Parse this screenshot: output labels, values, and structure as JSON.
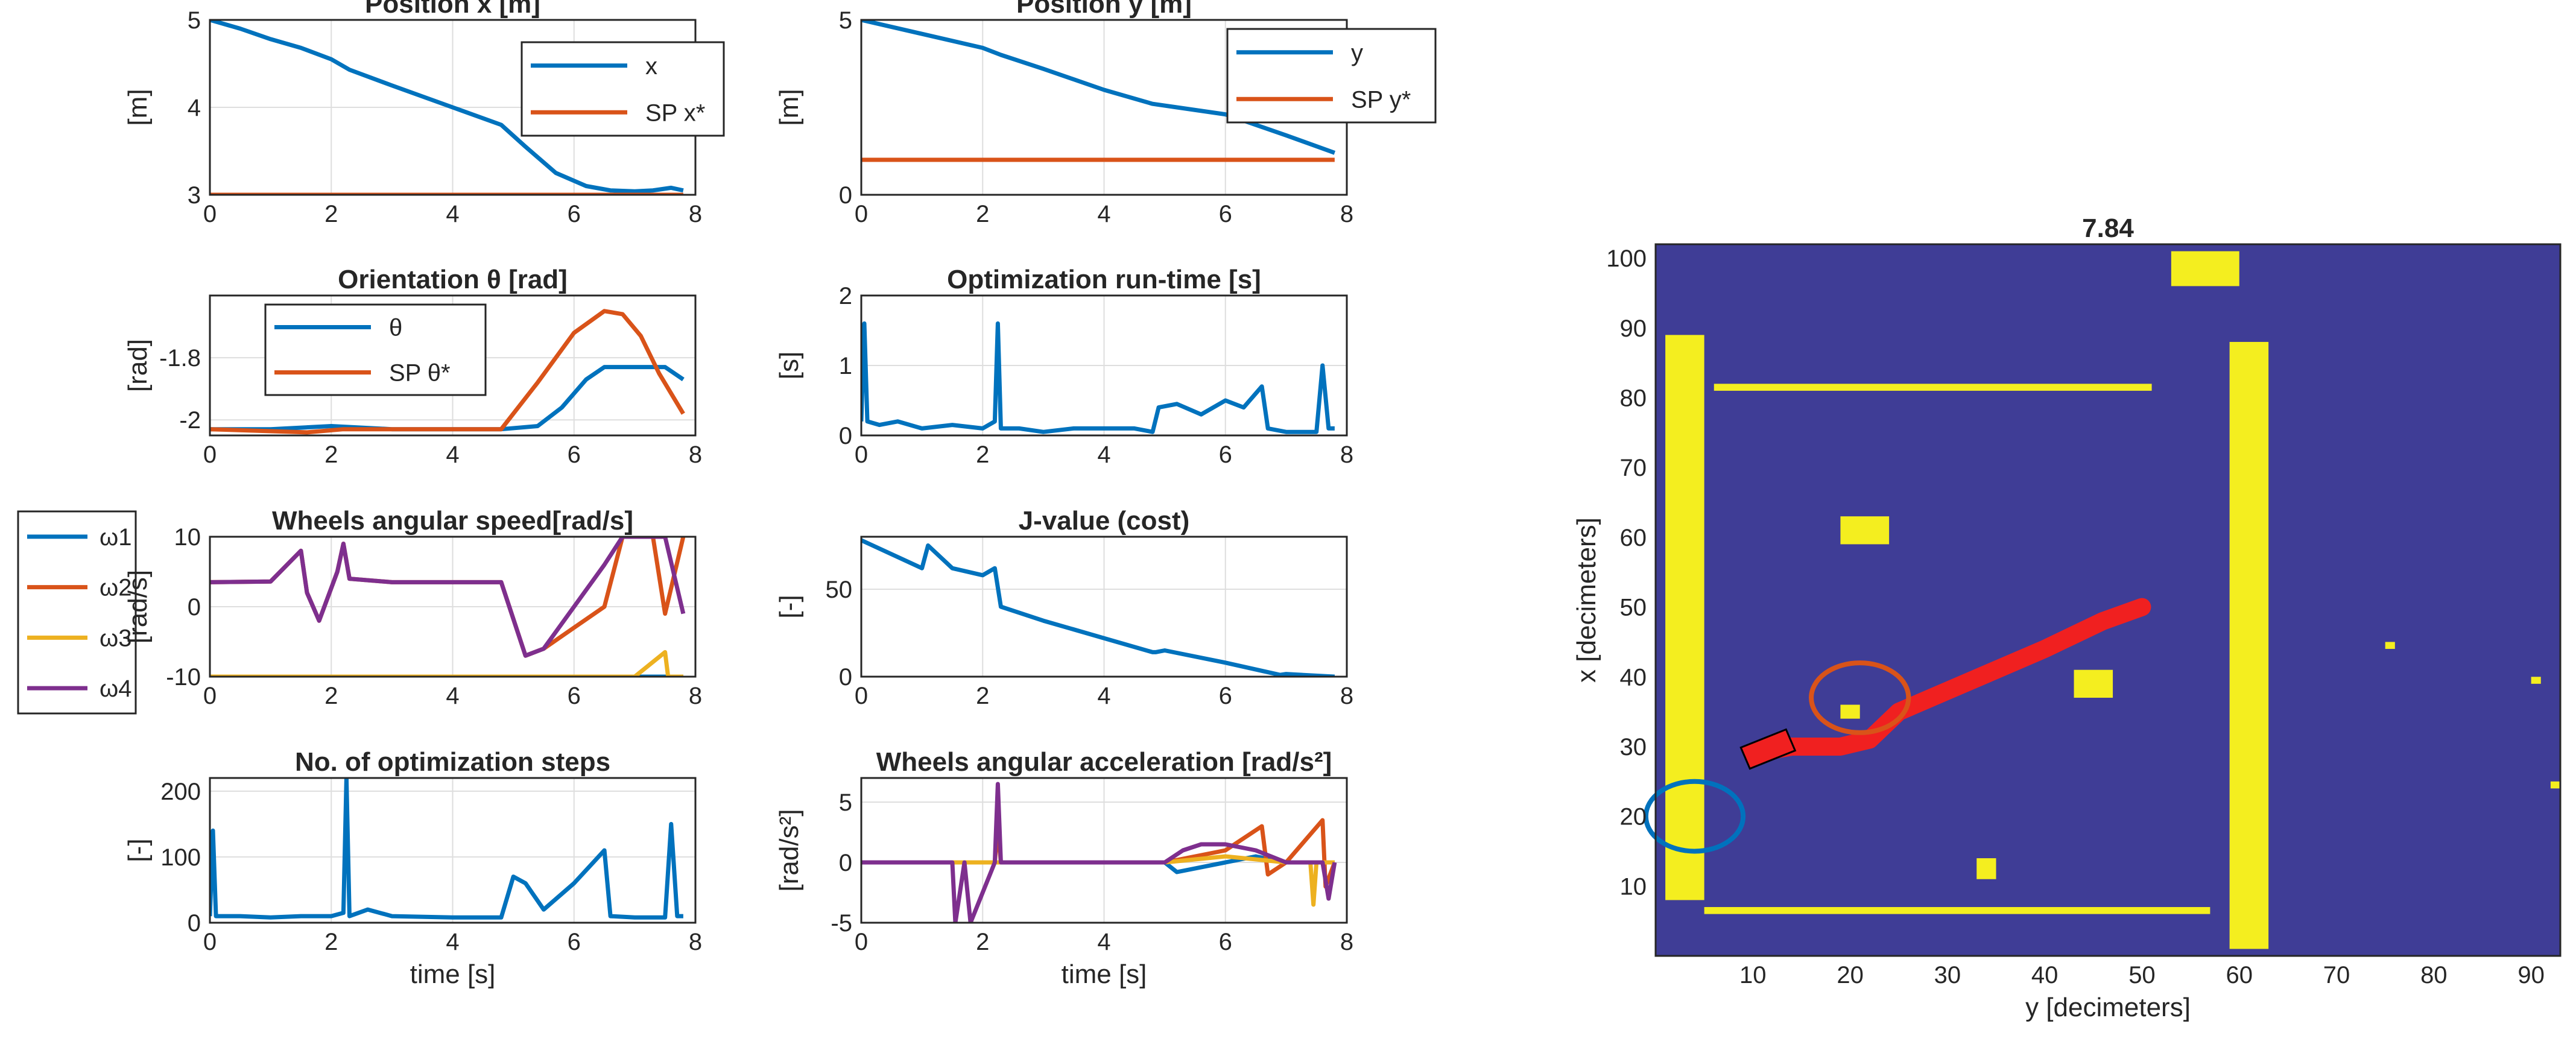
{
  "figure": {
    "type": "matlab-figure",
    "background": "#ffffff"
  },
  "colors": {
    "blue": "#0072BD",
    "orange": "#D95319",
    "yellow_line": "#EDB120",
    "purple": "#7E2F8E",
    "map_bg": "#3F3D96",
    "map_obstacle": "#F4EE1F",
    "path_red": "#F02020",
    "circle_orange": "#D95319",
    "circle_blue": "#0072BD"
  },
  "chart_data": [
    {
      "id": "pos-x",
      "type": "line",
      "title": "Position x [m]",
      "ylabel": "[m]",
      "xlabel": "",
      "xlim": [
        0,
        8
      ],
      "ylim": [
        3,
        5
      ],
      "xticks": [
        0,
        2,
        4,
        6,
        8
      ],
      "yticks": [
        3,
        4,
        5
      ],
      "grid": true,
      "legend": {
        "placement": "top-right",
        "entries": [
          "x",
          "SP x*"
        ]
      },
      "series": [
        {
          "name": "x",
          "color": "blue",
          "x": [
            0,
            0.5,
            1,
            1.5,
            2,
            2.3,
            3,
            4,
            4.8,
            5.2,
            5.7,
            6.2,
            6.6,
            7,
            7.3,
            7.6,
            7.8
          ],
          "y": [
            5,
            4.9,
            4.78,
            4.68,
            4.55,
            4.43,
            4.25,
            4.0,
            3.8,
            3.55,
            3.25,
            3.1,
            3.05,
            3.04,
            3.05,
            3.08,
            3.05
          ]
        },
        {
          "name": "SP x*",
          "color": "orange",
          "x": [
            0,
            7.8
          ],
          "y": [
            3,
            3
          ]
        }
      ]
    },
    {
      "id": "pos-y",
      "type": "line",
      "title": "Position y [m]",
      "ylabel": "[m]",
      "xlabel": "",
      "xlim": [
        0,
        8
      ],
      "ylim": [
        0,
        5
      ],
      "xticks": [
        0,
        2,
        4,
        6,
        8
      ],
      "yticks": [
        0,
        5
      ],
      "grid": true,
      "legend": {
        "placement": "top-right",
        "entries": [
          "y",
          "SP y*"
        ]
      },
      "series": [
        {
          "name": "y",
          "color": "blue",
          "x": [
            0,
            1,
            2,
            2.3,
            3,
            4,
            4.8,
            5.2,
            6,
            7,
            7.8
          ],
          "y": [
            5,
            4.6,
            4.2,
            4.0,
            3.6,
            3.0,
            2.6,
            2.5,
            2.3,
            1.7,
            1.2
          ]
        },
        {
          "name": "SP y*",
          "color": "orange",
          "x": [
            0,
            7.8
          ],
          "y": [
            1,
            1
          ]
        }
      ]
    },
    {
      "id": "orient",
      "type": "line",
      "title": "Orientation θ [rad]",
      "ylabel": "[rad]",
      "xlabel": "",
      "xlim": [
        0,
        8
      ],
      "ylim": [
        -2.05,
        -1.6
      ],
      "xticks": [
        0,
        2,
        4,
        6,
        8
      ],
      "yticks": [
        -2,
        -1.8
      ],
      "grid": true,
      "legend": {
        "placement": "top-left",
        "entries": [
          "θ",
          "SP θ*"
        ]
      },
      "series": [
        {
          "name": "θ",
          "color": "blue",
          "x": [
            0,
            1,
            2,
            3,
            4,
            4.8,
            5.4,
            5.8,
            6.2,
            6.5,
            7,
            7.5,
            7.8
          ],
          "y": [
            -2.03,
            -2.03,
            -2.02,
            -2.03,
            -2.03,
            -2.03,
            -2.02,
            -1.96,
            -1.87,
            -1.83,
            -1.83,
            -1.83,
            -1.87
          ]
        },
        {
          "name": "SP θ*",
          "color": "orange",
          "x": [
            0,
            1.6,
            2.2,
            3,
            4.8,
            5.4,
            6,
            6.5,
            6.8,
            7.1,
            7.4,
            7.8
          ],
          "y": [
            -2.03,
            -2.04,
            -2.03,
            -2.03,
            -2.03,
            -1.88,
            -1.72,
            -1.65,
            -1.66,
            -1.73,
            -1.85,
            -1.98
          ]
        }
      ]
    },
    {
      "id": "opt-runtime",
      "type": "line",
      "title": "Optimization run-time [s]",
      "ylabel": "[s]",
      "xlabel": "",
      "xlim": [
        0,
        8
      ],
      "ylim": [
        0,
        2
      ],
      "xticks": [
        0,
        2,
        4,
        6,
        8
      ],
      "yticks": [
        0,
        1,
        2
      ],
      "grid": true,
      "series": [
        {
          "name": "run-time",
          "color": "blue",
          "x": [
            0,
            0.05,
            0.1,
            0.3,
            0.6,
            1,
            1.5,
            2,
            2.2,
            2.25,
            2.3,
            2.6,
            3,
            3.5,
            4,
            4.5,
            4.8,
            4.9,
            5.2,
            5.6,
            6,
            6.3,
            6.6,
            6.7,
            7,
            7.5,
            7.6,
            7.7,
            7.8
          ],
          "y": [
            0.2,
            1.6,
            0.2,
            0.15,
            0.2,
            0.1,
            0.15,
            0.1,
            0.2,
            1.6,
            0.1,
            0.1,
            0.05,
            0.1,
            0.1,
            0.1,
            0.05,
            0.4,
            0.45,
            0.3,
            0.5,
            0.4,
            0.7,
            0.1,
            0.05,
            0.05,
            1.0,
            0.1,
            0.1
          ]
        }
      ]
    },
    {
      "id": "wheel-speed",
      "type": "line",
      "title": "Wheels angular speed[rad/s]",
      "ylabel": "[rad/s]",
      "xlabel": "",
      "xlim": [
        0,
        8
      ],
      "ylim": [
        -10,
        10
      ],
      "xticks": [
        0,
        2,
        4,
        6,
        8
      ],
      "yticks": [
        -10,
        0,
        10
      ],
      "grid": true,
      "legend": {
        "placement": "outside-left",
        "entries": [
          "ω1",
          "ω2",
          "ω3",
          "ω4"
        ]
      },
      "series": [
        {
          "name": "ω1",
          "color": "blue",
          "x": [
            0,
            7.8
          ],
          "y": [
            -10,
            -10
          ]
        },
        {
          "name": "ω2",
          "color": "orange",
          "x": [
            0,
            1,
            1.5,
            1.6,
            1.7,
            1.8,
            2.1,
            2.2,
            2.3,
            3,
            4,
            4.8,
            5.2,
            5.5,
            6,
            6.5,
            6.8,
            7.3,
            7.5,
            7.8
          ],
          "y": [
            3.5,
            3.6,
            8,
            2,
            0,
            -2,
            5,
            9,
            4,
            3.5,
            3.5,
            3.5,
            -7,
            -6,
            -3,
            0,
            10,
            10,
            -1,
            10
          ]
        },
        {
          "name": "ω3",
          "color": "yellow_line",
          "x": [
            0,
            7,
            7.5,
            7.55,
            7.8
          ],
          "y": [
            -10,
            -10,
            -6.5,
            -10,
            -10
          ]
        },
        {
          "name": "ω4",
          "color": "purple",
          "x": [
            0,
            1,
            1.5,
            1.6,
            1.7,
            1.8,
            2.1,
            2.2,
            2.3,
            3,
            4,
            4.8,
            5.2,
            5.5,
            6,
            6.5,
            6.8,
            7.3,
            7.5,
            7.8
          ],
          "y": [
            3.5,
            3.6,
            8,
            2,
            0,
            -2,
            5,
            9,
            4,
            3.5,
            3.5,
            3.5,
            -7,
            -6,
            0,
            6,
            10,
            10,
            10,
            -1
          ]
        }
      ]
    },
    {
      "id": "j-value",
      "type": "line",
      "title": "J-value (cost)",
      "ylabel": "[-]",
      "xlabel": "",
      "xlim": [
        0,
        8
      ],
      "ylim": [
        0,
        80
      ],
      "xticks": [
        0,
        2,
        4,
        6,
        8
      ],
      "yticks": [
        0,
        50
      ],
      "grid": true,
      "series": [
        {
          "name": "J",
          "color": "blue",
          "x": [
            0,
            1,
            1.1,
            1.5,
            2,
            2.2,
            2.3,
            3,
            4,
            4.8,
            4.85,
            5,
            6,
            6.9,
            7,
            7.8
          ],
          "y": [
            78,
            62,
            75,
            62,
            58,
            62,
            40,
            32,
            22,
            14,
            14,
            15,
            8,
            1,
            1.5,
            0
          ]
        }
      ]
    },
    {
      "id": "opt-steps",
      "type": "line",
      "title": "No. of optimization steps",
      "ylabel": "[-]",
      "xlabel": "time [s]",
      "xlim": [
        0,
        8
      ],
      "ylim": [
        0,
        220
      ],
      "xticks": [
        0,
        2,
        4,
        6,
        8
      ],
      "yticks": [
        0,
        100,
        200
      ],
      "grid": true,
      "series": [
        {
          "name": "steps",
          "color": "blue",
          "x": [
            0,
            0.05,
            0.1,
            0.5,
            1,
            1.5,
            2,
            2.2,
            2.25,
            2.3,
            2.6,
            3,
            4,
            4.8,
            5,
            5.2,
            5.5,
            6,
            6.3,
            6.5,
            6.6,
            7,
            7.5,
            7.6,
            7.7,
            7.8
          ],
          "y": [
            10,
            140,
            10,
            10,
            8,
            10,
            10,
            15,
            220,
            10,
            20,
            10,
            8,
            8,
            70,
            60,
            20,
            60,
            90,
            110,
            10,
            8,
            8,
            150,
            10,
            10
          ]
        }
      ]
    },
    {
      "id": "wheel-accel",
      "type": "line",
      "title": "Wheels angular acceleration [rad/s²]",
      "ylabel": "[rad/s²]",
      "xlabel": "time [s]",
      "xlim": [
        0,
        8
      ],
      "ylim": [
        -5,
        7
      ],
      "xticks": [
        0,
        2,
        4,
        6,
        8
      ],
      "yticks": [
        -5,
        0,
        5
      ],
      "grid": true,
      "series": [
        {
          "name": "ω1",
          "color": "blue",
          "x": [
            0,
            5,
            5.2,
            6.5,
            7,
            7.8
          ],
          "y": [
            0,
            0,
            -0.8,
            0.5,
            0,
            0
          ]
        },
        {
          "name": "ω2",
          "color": "orange",
          "x": [
            0,
            2.2,
            2.25,
            2.3,
            5,
            6,
            6.6,
            6.7,
            7,
            7.6,
            7.65,
            7.8
          ],
          "y": [
            0,
            0,
            3,
            0,
            0,
            1,
            3,
            -1,
            0,
            3.5,
            -2,
            0
          ]
        },
        {
          "name": "ω3",
          "color": "yellow_line",
          "x": [
            0,
            5,
            6,
            7,
            7.4,
            7.45,
            7.5,
            7.8
          ],
          "y": [
            0,
            0,
            0.5,
            0,
            0,
            -3.5,
            0,
            0
          ]
        },
        {
          "name": "ω4",
          "color": "purple",
          "x": [
            0,
            1.5,
            1.55,
            1.7,
            1.8,
            2.2,
            2.25,
            2.3,
            4,
            5,
            5.3,
            5.6,
            6,
            6.5,
            7,
            7.6,
            7.7,
            7.8
          ],
          "y": [
            0,
            0,
            -5,
            0,
            -5,
            0,
            6.5,
            0,
            0,
            0,
            1,
            1.5,
            1.5,
            1,
            0,
            0,
            -3,
            0
          ]
        }
      ]
    },
    {
      "id": "occupancy-map",
      "type": "heatmap",
      "title": "7.84",
      "xlabel": "y [decimeters]",
      "ylabel": "x [decimeters]",
      "xlim": [
        0,
        93
      ],
      "ylim": [
        0,
        102
      ],
      "xticks": [
        10,
        20,
        30,
        40,
        50,
        60,
        70,
        80,
        90
      ],
      "yticks": [
        10,
        20,
        30,
        40,
        50,
        60,
        70,
        80,
        90,
        100
      ],
      "obstacles": [
        {
          "label": "left-wall",
          "y": [
            1,
            5
          ],
          "x": [
            8,
            89
          ]
        },
        {
          "label": "right-wall",
          "y": [
            59,
            63
          ],
          "x": [
            1,
            88
          ]
        },
        {
          "label": "top-wall",
          "y": [
            6,
            51
          ],
          "x": [
            81,
            82
          ]
        },
        {
          "label": "bottom-wall",
          "y": [
            5,
            57
          ],
          "x": [
            6,
            7
          ]
        },
        {
          "label": "top-right-fragment",
          "y": [
            53,
            60
          ],
          "x": [
            96,
            101
          ]
        },
        {
          "label": "blob-a",
          "y": [
            19,
            24
          ],
          "x": [
            59,
            63
          ]
        },
        {
          "label": "blob-b",
          "y": [
            19,
            21
          ],
          "x": [
            34,
            36
          ]
        },
        {
          "label": "blob-c",
          "y": [
            43,
            47
          ],
          "x": [
            37,
            41
          ]
        },
        {
          "label": "blob-d",
          "y": [
            33,
            35
          ],
          "x": [
            11,
            14
          ]
        },
        {
          "label": "dot-1",
          "y": [
            75,
            76
          ],
          "x": [
            44,
            45
          ]
        },
        {
          "label": "dot-2",
          "y": [
            90,
            91
          ],
          "x": [
            39,
            40
          ]
        },
        {
          "label": "dot-3",
          "y": [
            92,
            93
          ],
          "x": [
            24,
            25
          ]
        }
      ],
      "path": {
        "color": "path_red",
        "y": [
          10,
          14,
          19,
          22,
          25,
          30,
          35,
          40,
          43,
          46,
          50
        ],
        "x": [
          29,
          30,
          30,
          31,
          35,
          38,
          41,
          44,
          46,
          48,
          50
        ]
      },
      "robot": {
        "center_y": 10,
        "center_x": 29
      },
      "circles": [
        {
          "label": "orange-circle",
          "center_y": 21,
          "center_x": 37,
          "r": 5
        },
        {
          "label": "blue-circle",
          "center_y": 4,
          "center_x": 20,
          "r": 5
        }
      ]
    }
  ]
}
